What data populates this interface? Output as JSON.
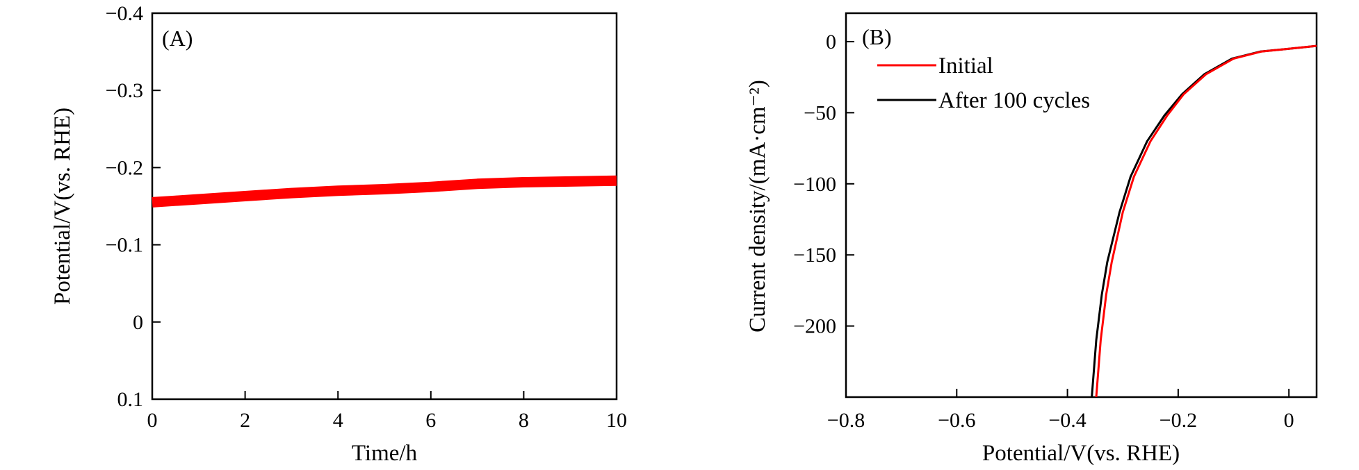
{
  "colors": {
    "initial": "#ff0000",
    "after": "#000000",
    "stability": "#ff0000"
  },
  "chart_data": [
    {
      "panel_label": "(A)",
      "type": "line",
      "xlabel": "Time/h",
      "ylabel": "Potential/V(vs. RHE)",
      "xlim": [
        0,
        10
      ],
      "ylim": [
        0.1,
        -0.4
      ],
      "y_reversed": true,
      "xticks": [
        0,
        2,
        4,
        6,
        8,
        10
      ],
      "xtick_labels": [
        "0",
        "2",
        "4",
        "6",
        "8",
        "10"
      ],
      "yticks": [
        0.1,
        0,
        -0.1,
        -0.2,
        -0.3,
        -0.4
      ],
      "ytick_labels": [
        "0.1",
        "0",
        "−0.1",
        "−0.2",
        "−0.3",
        "−0.4"
      ],
      "series": [
        {
          "x": [
            0,
            0.5,
            1,
            2,
            3,
            4,
            5,
            6,
            7,
            8,
            9,
            10
          ],
          "y": [
            -0.155,
            -0.157,
            -0.159,
            -0.163,
            -0.167,
            -0.17,
            -0.172,
            -0.175,
            -0.179,
            -0.181,
            -0.182,
            -0.183
          ]
        }
      ]
    },
    {
      "panel_label": "(B)",
      "type": "line",
      "xlabel": "Potential/V(vs. RHE)",
      "ylabel": "Current density/(mA·cm⁻²)",
      "xlim": [
        -0.8,
        0.05
      ],
      "ylim": [
        -250,
        20
      ],
      "xticks": [
        -0.8,
        -0.6,
        -0.4,
        -0.2,
        0
      ],
      "xtick_labels": [
        "−0.8",
        "−0.6",
        "−0.4",
        "−0.2",
        "0"
      ],
      "yticks": [
        0,
        -50,
        -100,
        -150,
        -200
      ],
      "ytick_labels": [
        "0",
        "−50",
        "−100",
        "−150",
        "−200"
      ],
      "legend_position": "top-left",
      "series": [
        {
          "name": "Initial",
          "x": [
            -0.348,
            -0.34,
            -0.33,
            -0.32,
            -0.3,
            -0.28,
            -0.25,
            -0.22,
            -0.19,
            -0.15,
            -0.1,
            -0.05,
            0,
            0.05
          ],
          "y": [
            -250,
            -210,
            -178,
            -155,
            -120,
            -95,
            -70,
            -52,
            -37,
            -23,
            -12,
            -7,
            -5,
            -3
          ]
        },
        {
          "name": "After 100 cycles",
          "x": [
            -0.356,
            -0.348,
            -0.338,
            -0.328,
            -0.306,
            -0.286,
            -0.256,
            -0.225,
            -0.193,
            -0.153,
            -0.103,
            -0.052,
            0,
            0.05
          ],
          "y": [
            -250,
            -210,
            -178,
            -155,
            -120,
            -95,
            -70,
            -52,
            -37,
            -23,
            -12,
            -7,
            -5,
            -3
          ]
        }
      ]
    }
  ]
}
